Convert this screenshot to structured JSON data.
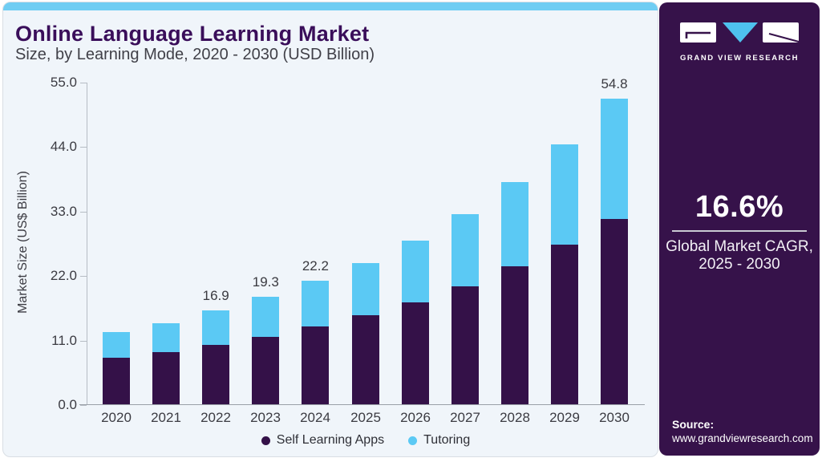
{
  "header": {
    "title": "Online Language Learning Market",
    "subtitle": "Size, by Learning Mode, 2020 - 2030 (USD Billion)"
  },
  "chart_data": {
    "type": "bar",
    "stacked": true,
    "title": "Online Language Learning Market Size, by Learning Mode, 2020 - 2030 (USD Billion)",
    "ylabel": "Market Size (US$ Billion)",
    "xlabel": "",
    "categories": [
      "2020",
      "2021",
      "2022",
      "2023",
      "2024",
      "2025",
      "2026",
      "2027",
      "2028",
      "2029",
      "2030"
    ],
    "series": [
      {
        "name": "Self Learning Apps",
        "color": "#341148",
        "values": [
          8.3,
          9.3,
          10.7,
          12.1,
          13.9,
          16.0,
          18.3,
          21.2,
          24.7,
          28.6,
          33.3
        ]
      },
      {
        "name": "Tutoring",
        "color": "#5bc9f4",
        "values": [
          4.6,
          5.3,
          6.2,
          7.2,
          8.3,
          9.3,
          11.0,
          12.9,
          15.1,
          18.0,
          21.5
        ]
      }
    ],
    "totals": [
      12.9,
      14.6,
      16.9,
      19.3,
      22.2,
      25.3,
      29.3,
      34.1,
      39.8,
      46.6,
      54.8
    ],
    "bar_labels": [
      "",
      "",
      "16.9",
      "19.3",
      "22.2",
      "",
      "",
      "",
      "",
      "",
      "54.8"
    ],
    "yticks": [
      0,
      11,
      22,
      33,
      44,
      55
    ],
    "ytick_labels": [
      "0.0",
      "11.0",
      "22.0",
      "33.0",
      "44.0",
      "55.0"
    ],
    "ylim": [
      0,
      55
    ],
    "grid": false,
    "legend_position": "bottom"
  },
  "sidebar": {
    "brand": "GRAND VIEW RESEARCH",
    "cagr_value": "16.6%",
    "cagr_label_line1": "Global Market CAGR,",
    "cagr_label_line2": "2025 - 2030",
    "source_label": "Source:",
    "source_url": "www.grandviewresearch.com"
  },
  "colors": {
    "accent_blue": "#5bc9f4",
    "dark_purple": "#341148",
    "sidebar_bg": "#36124a",
    "top_strip": "#6fcdf3",
    "card_bg": "#f0f5fa",
    "title_purple": "#3a0e5a"
  }
}
